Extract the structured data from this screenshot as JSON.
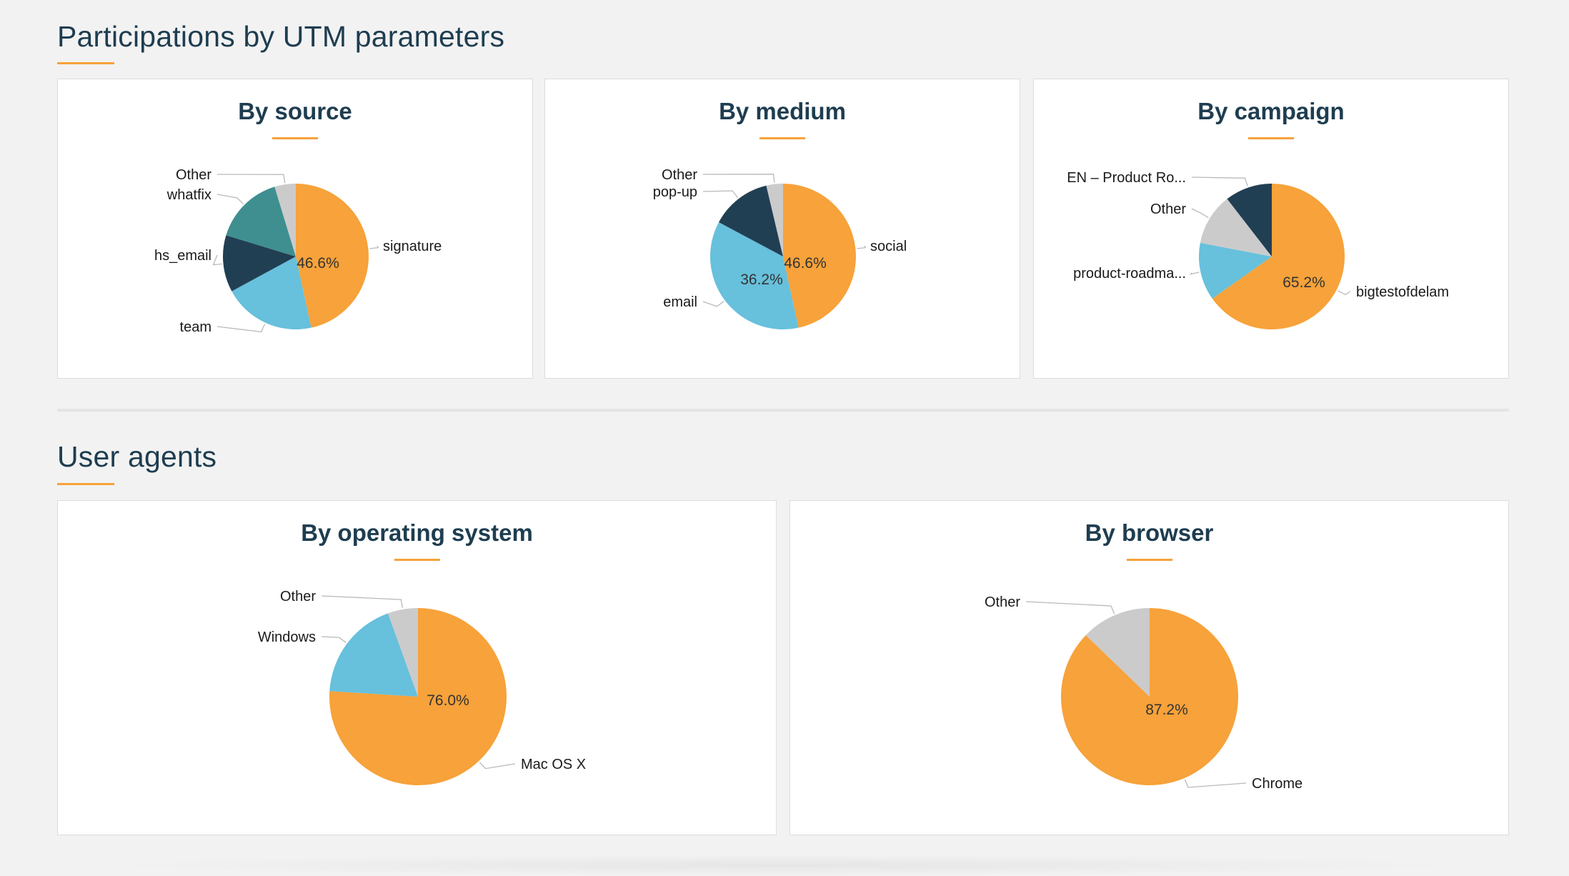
{
  "sections": {
    "utm_title": "Participations by UTM parameters",
    "ua_title": "User agents"
  },
  "colors": {
    "orange": "#f7a23a",
    "light_blue": "#67c0dc",
    "dark_navy": "#213f53",
    "teal": "#3f8f90",
    "gray": "#cbcbcb"
  },
  "chart_data": [
    {
      "type": "pie",
      "title": "By source",
      "slices": [
        {
          "label": "signature",
          "value": 46.6,
          "color": "#f7a23a",
          "show_pct": true
        },
        {
          "label": "team",
          "value": 20.5,
          "color": "#67c0dc",
          "show_pct": false
        },
        {
          "label": "hs_email",
          "value": 12.6,
          "color": "#213f53",
          "show_pct": false
        },
        {
          "label": "whatfix",
          "value": 15.6,
          "color": "#3f8f90",
          "show_pct": false
        },
        {
          "label": "Other",
          "value": 4.7,
          "color": "#cbcbcb",
          "show_pct": false
        }
      ]
    },
    {
      "type": "pie",
      "title": "By medium",
      "slices": [
        {
          "label": "social",
          "value": 46.6,
          "color": "#f7a23a",
          "show_pct": true
        },
        {
          "label": "email",
          "value": 36.2,
          "color": "#67c0dc",
          "show_pct": true
        },
        {
          "label": "pop-up",
          "value": 13.5,
          "color": "#213f53",
          "show_pct": false
        },
        {
          "label": "Other",
          "value": 3.7,
          "color": "#cbcbcb",
          "show_pct": false
        }
      ]
    },
    {
      "type": "pie",
      "title": "By campaign",
      "slices": [
        {
          "label": "bigtestofdelam",
          "value": 65.2,
          "color": "#f7a23a",
          "show_pct": true
        },
        {
          "label": "product-roadma...",
          "value": 12.8,
          "color": "#67c0dc",
          "show_pct": false
        },
        {
          "label": "Other",
          "value": 11.5,
          "color": "#cbcbcb",
          "show_pct": false
        },
        {
          "label": "EN – Product Ro...",
          "value": 10.5,
          "color": "#213f53",
          "show_pct": false
        }
      ]
    },
    {
      "type": "pie",
      "title": "By operating system",
      "slices": [
        {
          "label": "Mac OS X",
          "value": 76.0,
          "color": "#f7a23a",
          "show_pct": true
        },
        {
          "label": "Windows",
          "value": 18.5,
          "color": "#67c0dc",
          "show_pct": false
        },
        {
          "label": "Other",
          "value": 5.5,
          "color": "#cbcbcb",
          "show_pct": false
        }
      ]
    },
    {
      "type": "pie",
      "title": "By browser",
      "slices": [
        {
          "label": "Chrome",
          "value": 87.2,
          "color": "#f7a23a",
          "show_pct": true
        },
        {
          "label": "Other",
          "value": 12.8,
          "color": "#cbcbcb",
          "show_pct": false
        }
      ]
    }
  ]
}
